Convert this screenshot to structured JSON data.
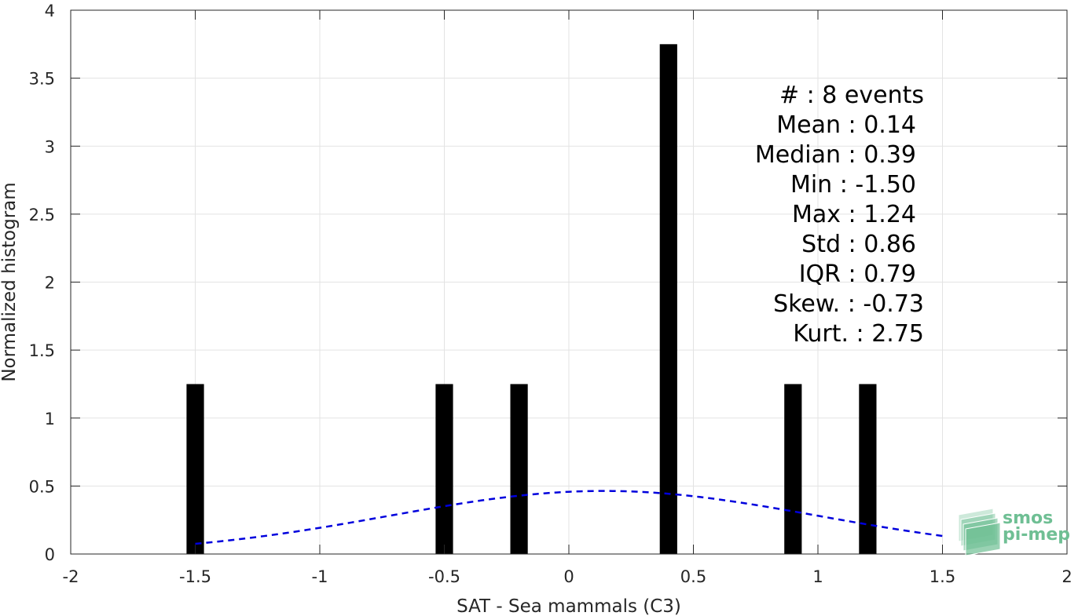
{
  "chart_data": {
    "type": "bar",
    "xlabel": "SAT - Sea mammals (C3)",
    "ylabel": "Normalized histogram",
    "xlim": [
      -2,
      2
    ],
    "ylim": [
      0,
      4
    ],
    "x_ticks": [
      "-2",
      "-1.5",
      "-1",
      "-0.5",
      "0",
      "0.5",
      "1",
      "1.5",
      "2"
    ],
    "y_ticks": [
      "0",
      "0.5",
      "1",
      "1.5",
      "2",
      "2.5",
      "3",
      "3.5",
      "4"
    ],
    "grid": true,
    "bars": [
      {
        "x": -1.5,
        "value": 1.25
      },
      {
        "x": -0.5,
        "value": 1.25
      },
      {
        "x": -0.2,
        "value": 1.25
      },
      {
        "x": 0.4,
        "value": 3.75
      },
      {
        "x": 0.9,
        "value": 1.25
      },
      {
        "x": 1.2,
        "value": 1.25
      }
    ],
    "bar_width": 0.07,
    "bar_color": "#000000",
    "normal_fit": {
      "mean": 0.14,
      "std": 0.86,
      "x_range": [
        -1.5,
        1.5
      ],
      "color": "#0000dd",
      "style": "dashed"
    },
    "stats_lines": [
      "#  : 8 events",
      "Mean : 0.14",
      "Median : 0.39",
      "Min : -1.50",
      "Max : 1.24",
      "Std : 0.86",
      "IQR : 0.79",
      "Skew. : -0.73",
      "Kurt. : 2.75"
    ]
  },
  "logo": {
    "line1": "smos",
    "line2": "pi-mep",
    "color": "#6fbf94"
  }
}
